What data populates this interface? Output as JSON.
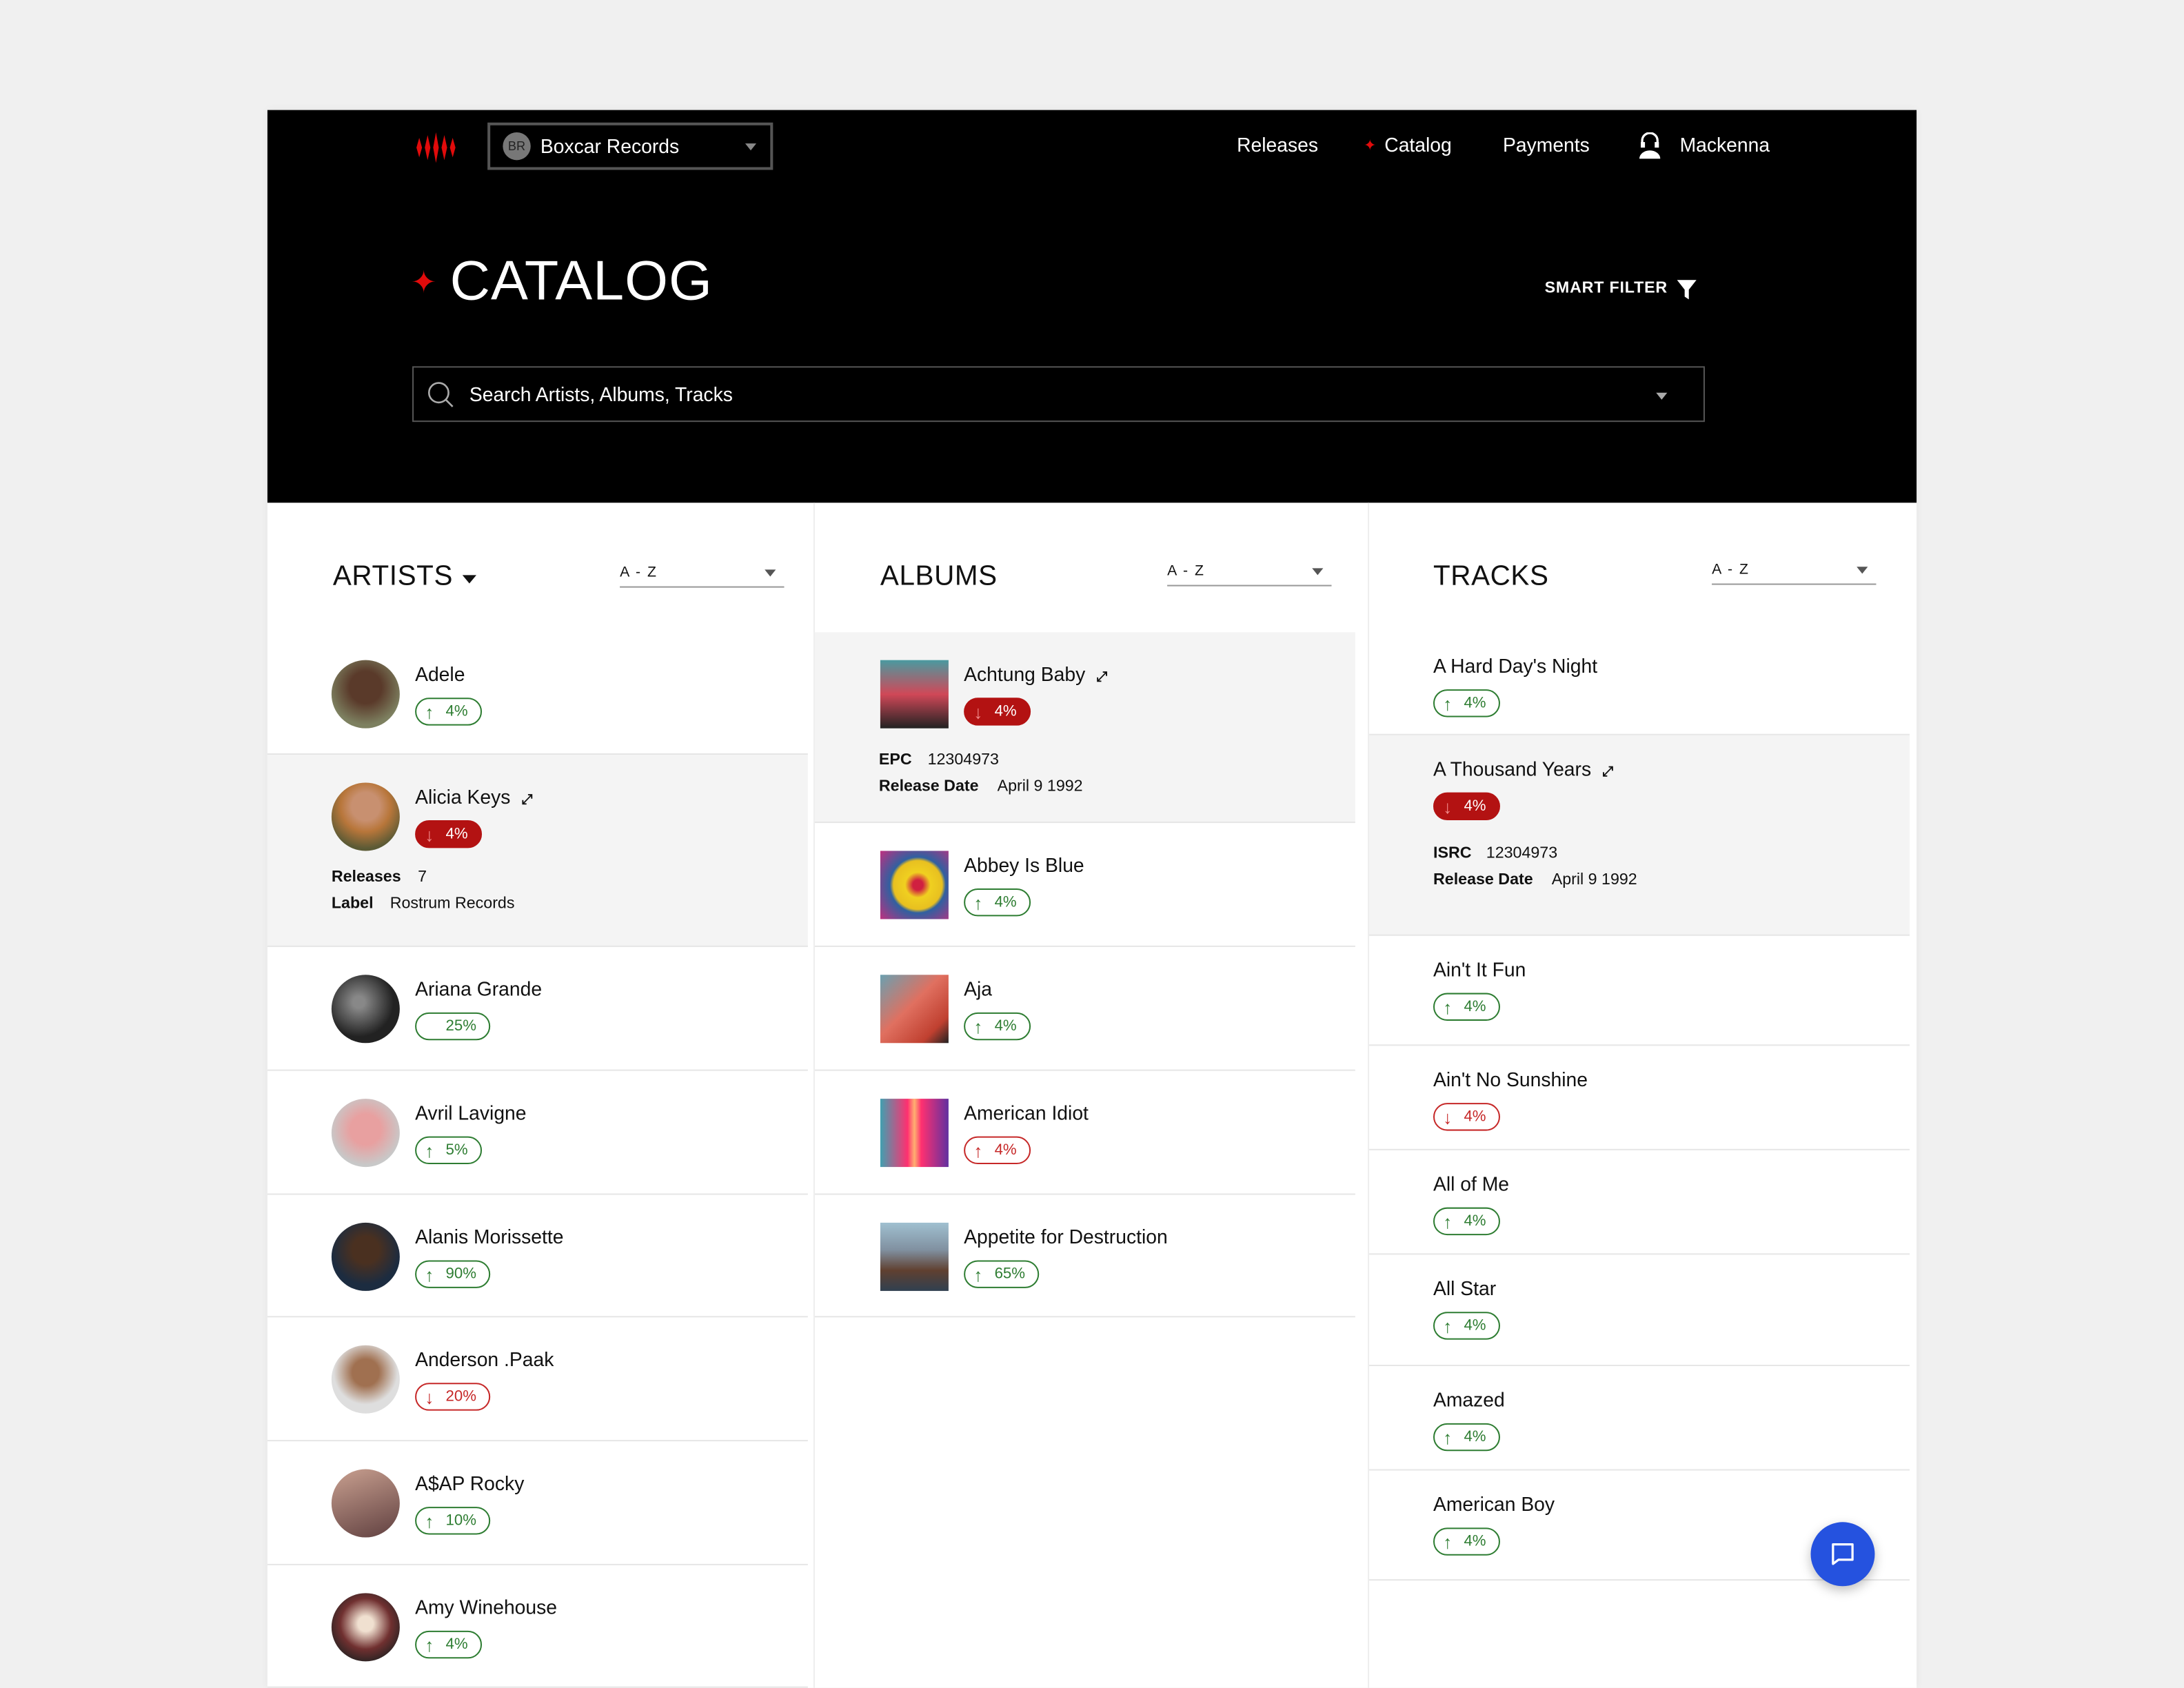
{
  "header": {
    "org_initials": "BR",
    "org_name": "Boxcar Records",
    "nav": [
      "Releases",
      "Catalog",
      "Payments"
    ],
    "active_nav": "Catalog",
    "user": "Mackenna",
    "page_title": "CATALOG",
    "smart_filter": "SMART FILTER",
    "search_placeholder": "Search Artists, Albums, Tracks",
    "accent": "#e10b0b"
  },
  "columns": {
    "artists": {
      "title": "ARTISTS",
      "sort": "A - Z"
    },
    "albums": {
      "title": "ALBUMS",
      "sort": "A - Z"
    },
    "tracks": {
      "title": "TRACKS",
      "sort": "A - Z"
    }
  },
  "artists": [
    {
      "name": "Adele",
      "dir": "up",
      "value": "4%",
      "style": "green"
    },
    {
      "name": "Alicia Keys",
      "dir": "down",
      "value": "4%",
      "style": "red-filled",
      "expanded": true,
      "details": [
        {
          "label": "Releases",
          "value": "7"
        },
        {
          "label": "Label",
          "value": "Rostrum Records"
        }
      ]
    },
    {
      "name": "Ariana Grande",
      "dir": "none",
      "value": "25%",
      "style": "green"
    },
    {
      "name": "Avril Lavigne",
      "dir": "up",
      "value": "5%",
      "style": "green"
    },
    {
      "name": "Alanis Morissette",
      "dir": "up",
      "value": "90%",
      "style": "green"
    },
    {
      "name": "Anderson .Paak",
      "dir": "down",
      "value": "20%",
      "style": "red-outline"
    },
    {
      "name": "A$AP Rocky",
      "dir": "up",
      "value": "10%",
      "style": "green"
    },
    {
      "name": "Amy Winehouse",
      "dir": "up",
      "value": "4%",
      "style": "green"
    }
  ],
  "albums": [
    {
      "name": "Achtung Baby",
      "dir": "down",
      "value": "4%",
      "style": "red-filled",
      "expanded": true,
      "details": [
        {
          "label": "EPC",
          "value": "12304973"
        },
        {
          "label": "Release Date",
          "value": "April 9 1992"
        }
      ]
    },
    {
      "name": "Abbey Is Blue",
      "dir": "up",
      "value": "4%",
      "style": "green"
    },
    {
      "name": "Aja",
      "dir": "up",
      "value": "4%",
      "style": "green"
    },
    {
      "name": "American Idiot",
      "dir": "up",
      "value": "4%",
      "style": "red-outline"
    },
    {
      "name": "Appetite for Destruction",
      "dir": "up",
      "value": "65%",
      "style": "green"
    }
  ],
  "tracks": [
    {
      "name": "A Hard Day's Night",
      "dir": "up",
      "value": "4%",
      "style": "green"
    },
    {
      "name": "A Thousand Years",
      "dir": "down",
      "value": "4%",
      "style": "red-filled",
      "expanded": true,
      "details": [
        {
          "label": "ISRC",
          "value": "12304973"
        },
        {
          "label": "Release Date",
          "value": "April 9 1992"
        }
      ]
    },
    {
      "name": "Ain't It Fun",
      "dir": "up",
      "value": "4%",
      "style": "green"
    },
    {
      "name": "Ain't No Sunshine",
      "dir": "down",
      "value": "4%",
      "style": "red-outline"
    },
    {
      "name": "All of Me",
      "dir": "up",
      "value": "4%",
      "style": "green"
    },
    {
      "name": "All Star",
      "dir": "up",
      "value": "4%",
      "style": "green"
    },
    {
      "name": "Amazed",
      "dir": "up",
      "value": "4%",
      "style": "green"
    },
    {
      "name": "American Boy",
      "dir": "up",
      "value": "4%",
      "style": "green"
    }
  ]
}
